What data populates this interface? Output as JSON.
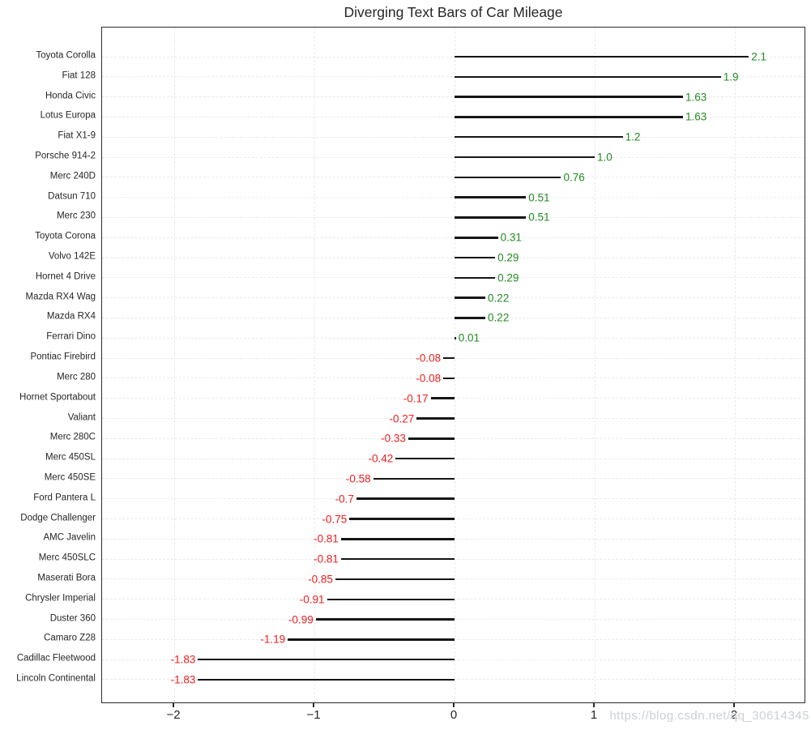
{
  "title": "Diverging Text Bars of Car Mileage",
  "watermark": "https://blog.csdn.net/qq_30614345",
  "colors": {
    "positive": "#228B22",
    "negative": "#ef2020",
    "bar_line": "#161616",
    "grid": "#eaeaec",
    "spine": "#2b2b2b",
    "text": "#262626",
    "watermark": "#ccd0d5"
  },
  "chart_data": {
    "type": "bar",
    "orientation": "horizontal-diverging",
    "title": "Diverging Text Bars of Car Mileage",
    "xlabel": "",
    "ylabel": "",
    "grid": true,
    "xlim": [
      -2.51,
      2.51
    ],
    "xticks": [
      -2,
      -1,
      0,
      1,
      2
    ],
    "xtick_labels": [
      "−2",
      "−1",
      "0",
      "1",
      "2"
    ],
    "categories": [
      "Toyota Corolla",
      "Fiat 128",
      "Honda Civic",
      "Lotus Europa",
      "Fiat X1-9",
      "Porsche 914-2",
      "Merc 240D",
      "Datsun 710",
      "Merc 230",
      "Toyota Corona",
      "Volvo 142E",
      "Hornet 4 Drive",
      "Mazda RX4 Wag",
      "Mazda RX4",
      "Ferrari Dino",
      "Pontiac Firebird",
      "Merc 280",
      "Hornet Sportabout",
      "Valiant",
      "Merc 280C",
      "Merc 450SL",
      "Merc 450SE",
      "Ford Pantera L",
      "Dodge Challenger",
      "AMC Javelin",
      "Merc 450SLC",
      "Maserati Bora",
      "Chrysler Imperial",
      "Duster 360",
      "Camaro Z28",
      "Cadillac Fleetwood",
      "Lincoln Continental"
    ],
    "values": [
      2.1,
      1.9,
      1.63,
      1.63,
      1.2,
      1.0,
      0.76,
      0.51,
      0.51,
      0.31,
      0.29,
      0.29,
      0.22,
      0.22,
      0.01,
      -0.08,
      -0.08,
      -0.17,
      -0.27,
      -0.33,
      -0.42,
      -0.58,
      -0.7,
      -0.75,
      -0.81,
      -0.81,
      -0.85,
      -0.91,
      -0.99,
      -1.19,
      -1.83,
      -1.83
    ],
    "value_labels": [
      "2.1",
      "1.9",
      "1.63",
      "1.63",
      "1.2",
      "1.0",
      "0.76",
      "0.51",
      "0.51",
      "0.31",
      "0.29",
      "0.29",
      "0.22",
      "0.22",
      "0.01",
      "-0.08",
      "-0.08",
      "-0.17",
      "-0.27",
      "-0.33",
      "-0.42",
      "-0.58",
      "-0.7",
      "-0.75",
      "-0.81",
      "-0.81",
      "-0.85",
      "-0.91",
      "-0.99",
      "-1.19",
      "-1.83",
      "-1.83"
    ],
    "legend": null
  }
}
